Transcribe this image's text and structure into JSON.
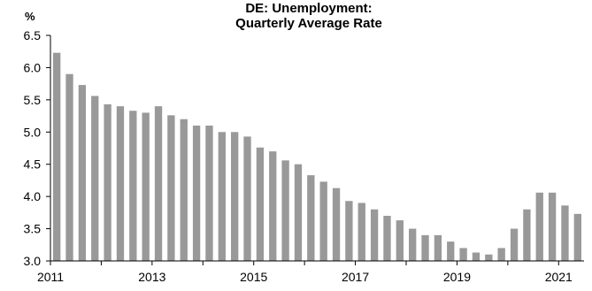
{
  "chart_data": {
    "type": "bar",
    "title_line1": "DE: Unemployment:",
    "title_line2": "Quarterly Average Rate",
    "ylabel": "%",
    "ylim": [
      3.0,
      6.5
    ],
    "yticks": [
      "3.0",
      "3.5",
      "4.0",
      "4.5",
      "5.0",
      "5.5",
      "6.0",
      "6.5"
    ],
    "xlim": [
      2011,
      2021.5
    ],
    "xticks": [
      "2011",
      "2013",
      "2015",
      "2017",
      "2019",
      "2021"
    ],
    "grid": false,
    "bar_color": "#999999",
    "series": [
      {
        "x": [
          "2011Q1",
          "2011Q2",
          "2011Q3",
          "2011Q4",
          "2012Q1",
          "2012Q2",
          "2012Q3",
          "2012Q4",
          "2013Q1",
          "2013Q2",
          "2013Q3",
          "2013Q4",
          "2014Q1",
          "2014Q2",
          "2014Q3",
          "2014Q4",
          "2015Q1",
          "2015Q2",
          "2015Q3",
          "2015Q4",
          "2016Q1",
          "2016Q2",
          "2016Q3",
          "2016Q4",
          "2017Q1",
          "2017Q2",
          "2017Q3",
          "2017Q4",
          "2018Q1",
          "2018Q2",
          "2018Q3",
          "2018Q4",
          "2019Q1",
          "2019Q2",
          "2019Q3",
          "2019Q4",
          "2020Q1",
          "2020Q2",
          "2020Q3",
          "2020Q4",
          "2021Q1",
          "2021Q2"
        ],
        "values": [
          6.23,
          5.9,
          5.73,
          5.56,
          5.43,
          5.4,
          5.33,
          5.3,
          5.4,
          5.26,
          5.2,
          5.1,
          5.1,
          5.0,
          5.0,
          4.93,
          4.76,
          4.7,
          4.56,
          4.5,
          4.33,
          4.23,
          4.13,
          3.93,
          3.9,
          3.8,
          3.7,
          3.63,
          3.5,
          3.4,
          3.4,
          3.3,
          3.2,
          3.13,
          3.1,
          3.2,
          3.5,
          3.8,
          4.06,
          4.06,
          3.86,
          3.73
        ]
      }
    ]
  }
}
